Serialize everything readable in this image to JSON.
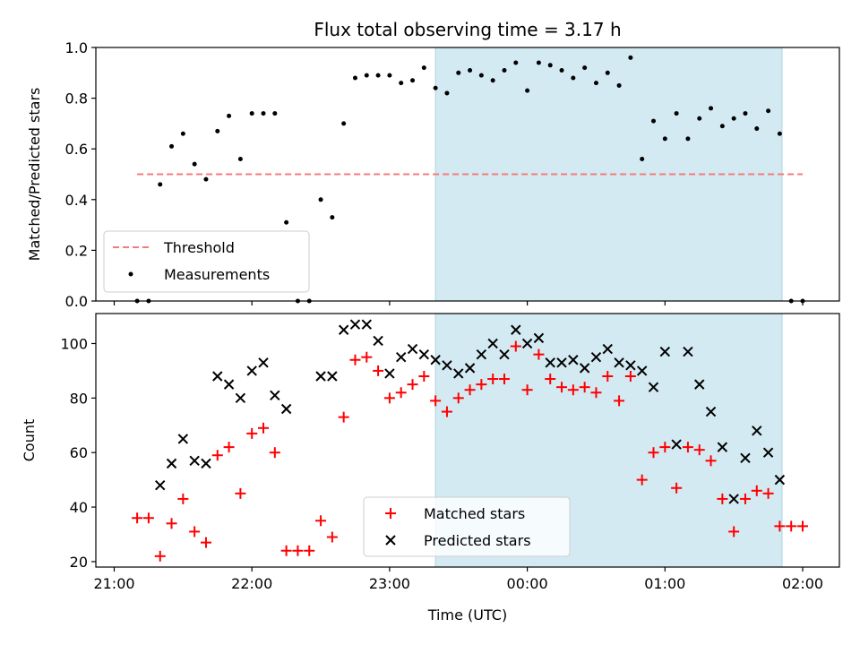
{
  "chart_data": [
    {
      "type": "scatter",
      "title": "Flux total observing time = 3.17 h",
      "xlabel": "",
      "ylabel": "Matched/Predicted stars",
      "xlim": [
        "20:52",
        "02:16"
      ],
      "ylim": [
        0,
        1.0
      ],
      "yticks": [
        "0.0",
        "0.2",
        "0.4",
        "0.6",
        "0.8",
        "1.0"
      ],
      "xticks": [
        "21:00",
        "22:00",
        "23:00",
        "00:00",
        "01:00",
        "02:00"
      ],
      "shaded_region": {
        "from": "23:20",
        "to": "01:51",
        "color": "#d3eaf2"
      },
      "threshold": {
        "name": "Threshold",
        "value": 0.5,
        "from": "21:10",
        "to": "02:00",
        "color": "#f47b7b"
      },
      "series": [
        {
          "name": "Measurements",
          "color": "#000000",
          "points": [
            [
              "21:10",
              0.0
            ],
            [
              "21:15",
              0.0
            ],
            [
              "21:20",
              0.46
            ],
            [
              "21:25",
              0.61
            ],
            [
              "21:30",
              0.66
            ],
            [
              "21:35",
              0.54
            ],
            [
              "21:40",
              0.48
            ],
            [
              "21:45",
              0.67
            ],
            [
              "21:50",
              0.73
            ],
            [
              "21:55",
              0.56
            ],
            [
              "22:00",
              0.74
            ],
            [
              "22:05",
              0.74
            ],
            [
              "22:10",
              0.74
            ],
            [
              "22:15",
              0.31
            ],
            [
              "22:20",
              0.0
            ],
            [
              "22:25",
              0.0
            ],
            [
              "22:30",
              0.4
            ],
            [
              "22:35",
              0.33
            ],
            [
              "22:40",
              0.7
            ],
            [
              "22:45",
              0.88
            ],
            [
              "22:50",
              0.89
            ],
            [
              "22:55",
              0.89
            ],
            [
              "23:00",
              0.89
            ],
            [
              "23:05",
              0.86
            ],
            [
              "23:10",
              0.87
            ],
            [
              "23:15",
              0.92
            ],
            [
              "23:20",
              0.84
            ],
            [
              "23:25",
              0.82
            ],
            [
              "23:30",
              0.9
            ],
            [
              "23:35",
              0.91
            ],
            [
              "23:40",
              0.89
            ],
            [
              "23:45",
              0.87
            ],
            [
              "23:50",
              0.91
            ],
            [
              "23:55",
              0.94
            ],
            [
              "00:00",
              0.83
            ],
            [
              "00:05",
              0.94
            ],
            [
              "00:10",
              0.93
            ],
            [
              "00:15",
              0.91
            ],
            [
              "00:20",
              0.88
            ],
            [
              "00:25",
              0.92
            ],
            [
              "00:30",
              0.86
            ],
            [
              "00:35",
              0.9
            ],
            [
              "00:40",
              0.85
            ],
            [
              "00:45",
              0.96
            ],
            [
              "00:50",
              0.56
            ],
            [
              "00:55",
              0.71
            ],
            [
              "01:00",
              0.64
            ],
            [
              "01:05",
              0.74
            ],
            [
              "01:10",
              0.64
            ],
            [
              "01:15",
              0.72
            ],
            [
              "01:20",
              0.76
            ],
            [
              "01:25",
              0.69
            ],
            [
              "01:30",
              0.72
            ],
            [
              "01:35",
              0.74
            ],
            [
              "01:40",
              0.68
            ],
            [
              "01:45",
              0.75
            ],
            [
              "01:50",
              0.66
            ],
            [
              "01:55",
              0.0
            ],
            [
              "02:00",
              0.0
            ]
          ]
        }
      ],
      "legend": {
        "placement": "lower-left",
        "entries": [
          "Threshold",
          "Measurements"
        ]
      }
    },
    {
      "type": "scatter",
      "title": "",
      "xlabel": "Time (UTC)",
      "ylabel": "Count",
      "xlim": [
        "20:52",
        "02:16"
      ],
      "ylim": [
        18,
        111
      ],
      "yticks": [
        "20",
        "40",
        "60",
        "80",
        "100"
      ],
      "xticks": [
        "21:00",
        "22:00",
        "23:00",
        "00:00",
        "01:00",
        "02:00"
      ],
      "shaded_region": {
        "from": "23:20",
        "to": "01:51",
        "color": "#d3eaf2"
      },
      "series": [
        {
          "name": "Matched stars",
          "marker": "plus",
          "color": "#ff0000",
          "points": [
            [
              "21:10",
              36
            ],
            [
              "21:15",
              36
            ],
            [
              "21:20",
              22
            ],
            [
              "21:25",
              34
            ],
            [
              "21:30",
              43
            ],
            [
              "21:35",
              31
            ],
            [
              "21:40",
              27
            ],
            [
              "21:45",
              59
            ],
            [
              "21:50",
              62
            ],
            [
              "21:55",
              45
            ],
            [
              "22:00",
              67
            ],
            [
              "22:05",
              69
            ],
            [
              "22:10",
              60
            ],
            [
              "22:15",
              24
            ],
            [
              "22:20",
              24
            ],
            [
              "22:25",
              24
            ],
            [
              "22:30",
              35
            ],
            [
              "22:35",
              29
            ],
            [
              "22:40",
              73
            ],
            [
              "22:45",
              94
            ],
            [
              "22:50",
              95
            ],
            [
              "22:55",
              90
            ],
            [
              "23:00",
              80
            ],
            [
              "23:05",
              82
            ],
            [
              "23:10",
              85
            ],
            [
              "23:15",
              88
            ],
            [
              "23:20",
              79
            ],
            [
              "23:25",
              75
            ],
            [
              "23:30",
              80
            ],
            [
              "23:35",
              83
            ],
            [
              "23:40",
              85
            ],
            [
              "23:45",
              87
            ],
            [
              "23:50",
              87
            ],
            [
              "23:55",
              99
            ],
            [
              "00:00",
              83
            ],
            [
              "00:05",
              96
            ],
            [
              "00:10",
              87
            ],
            [
              "00:15",
              84
            ],
            [
              "00:20",
              83
            ],
            [
              "00:25",
              84
            ],
            [
              "00:30",
              82
            ],
            [
              "00:35",
              88
            ],
            [
              "00:40",
              79
            ],
            [
              "00:45",
              88
            ],
            [
              "00:50",
              50
            ],
            [
              "00:55",
              60
            ],
            [
              "01:00",
              62
            ],
            [
              "01:05",
              47
            ],
            [
              "01:10",
              62
            ],
            [
              "01:15",
              61
            ],
            [
              "01:20",
              57
            ],
            [
              "01:25",
              43
            ],
            [
              "01:30",
              31
            ],
            [
              "01:35",
              43
            ],
            [
              "01:40",
              46
            ],
            [
              "01:45",
              45
            ],
            [
              "01:50",
              33
            ],
            [
              "01:55",
              33
            ],
            [
              "02:00",
              33
            ]
          ]
        },
        {
          "name": "Predicted stars",
          "marker": "x",
          "color": "#000000",
          "points": [
            [
              "21:20",
              48
            ],
            [
              "21:25",
              56
            ],
            [
              "21:30",
              65
            ],
            [
              "21:35",
              57
            ],
            [
              "21:40",
              56
            ],
            [
              "21:45",
              88
            ],
            [
              "21:50",
              85
            ],
            [
              "21:55",
              80
            ],
            [
              "22:00",
              90
            ],
            [
              "22:05",
              93
            ],
            [
              "22:10",
              81
            ],
            [
              "22:15",
              76
            ],
            [
              "22:30",
              88
            ],
            [
              "22:35",
              88
            ],
            [
              "22:40",
              105
            ],
            [
              "22:45",
              107
            ],
            [
              "22:50",
              107
            ],
            [
              "22:55",
              101
            ],
            [
              "23:00",
              89
            ],
            [
              "23:05",
              95
            ],
            [
              "23:10",
              98
            ],
            [
              "23:15",
              96
            ],
            [
              "23:20",
              94
            ],
            [
              "23:25",
              92
            ],
            [
              "23:30",
              89
            ],
            [
              "23:35",
              91
            ],
            [
              "23:40",
              96
            ],
            [
              "23:45",
              100
            ],
            [
              "23:50",
              96
            ],
            [
              "23:55",
              105
            ],
            [
              "00:00",
              100
            ],
            [
              "00:05",
              102
            ],
            [
              "00:10",
              93
            ],
            [
              "00:15",
              93
            ],
            [
              "00:20",
              94
            ],
            [
              "00:25",
              91
            ],
            [
              "00:30",
              95
            ],
            [
              "00:35",
              98
            ],
            [
              "00:40",
              93
            ],
            [
              "00:45",
              92
            ],
            [
              "00:50",
              90
            ],
            [
              "00:55",
              84
            ],
            [
              "01:00",
              97
            ],
            [
              "01:05",
              63
            ],
            [
              "01:10",
              97
            ],
            [
              "01:15",
              85
            ],
            [
              "01:20",
              75
            ],
            [
              "01:25",
              62
            ],
            [
              "01:30",
              43
            ],
            [
              "01:35",
              58
            ],
            [
              "01:40",
              68
            ],
            [
              "01:45",
              60
            ],
            [
              "01:50",
              50
            ]
          ]
        }
      ],
      "legend": {
        "placement": "lower-center",
        "entries": [
          "Matched stars",
          "Predicted stars"
        ]
      }
    }
  ]
}
